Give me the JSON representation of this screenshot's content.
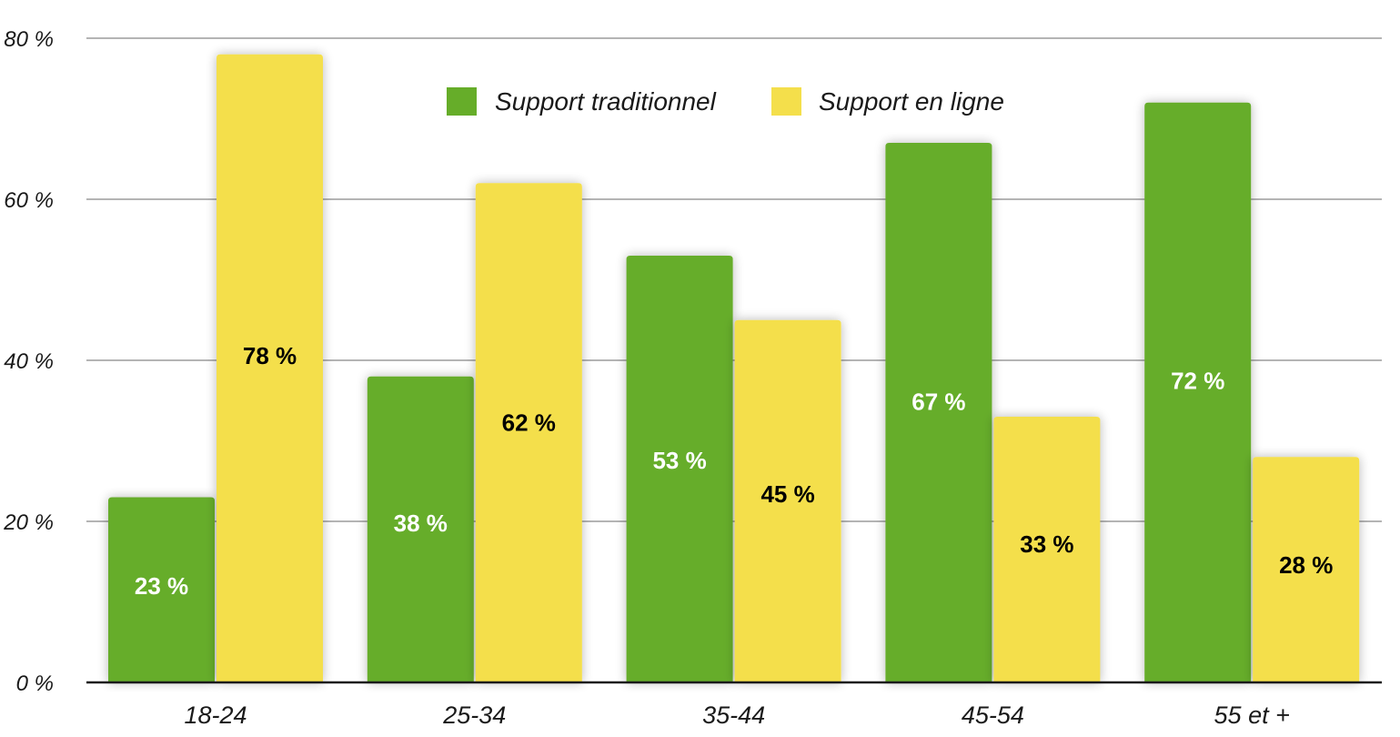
{
  "chart_data": {
    "type": "bar",
    "categories": [
      "18-24",
      "25-34",
      "35-44",
      "45-54",
      "55 et +"
    ],
    "series": [
      {
        "name": "Support traditionnel",
        "values": [
          23,
          38,
          53,
          67,
          72
        ],
        "labels": [
          "23 %",
          "38 %",
          "53 %",
          "67 %",
          "72 %"
        ],
        "color": "#66ad29",
        "label_color": "#ffffff"
      },
      {
        "name": "Support en ligne",
        "values": [
          78,
          62,
          45,
          33,
          28
        ],
        "labels": [
          "78 %",
          "62 %",
          "45 %",
          "33 %",
          "28 %"
        ],
        "color": "#f4df4b",
        "label_color": "#000000"
      }
    ],
    "ylim": [
      0,
      80
    ],
    "yticks": [
      0,
      20,
      40,
      60,
      80
    ],
    "ytick_labels": [
      "0 %",
      "20 %",
      "40 %",
      "60 %",
      "80 %"
    ],
    "grid": true,
    "legend": "top-center",
    "grid_color": "#b4b4b4",
    "axis_color": "#1a1a1a"
  }
}
